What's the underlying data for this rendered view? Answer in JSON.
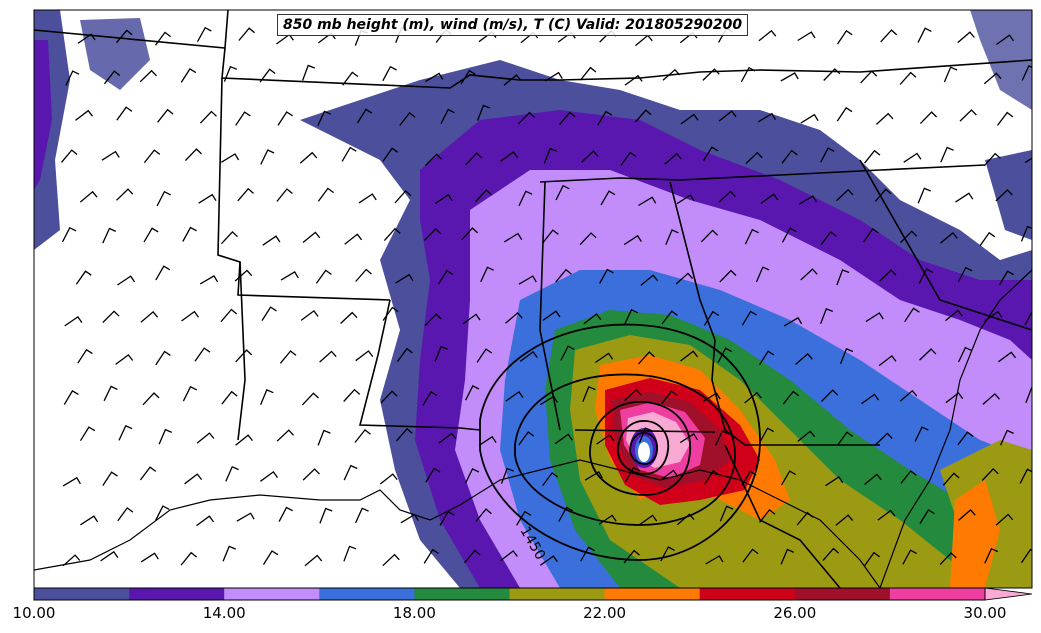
{
  "title": "850 mb height (m), wind (m/s), T (C) Valid: 201805290200",
  "contour_label": "1450",
  "colorbar": {
    "ticks": [
      "10.00",
      "14.00",
      "18.00",
      "22.00",
      "26.00",
      "30.00"
    ],
    "colors": [
      "#4b4f9c",
      "#5a17b0",
      "#c28cfb",
      "#3a6fdc",
      "#238a3e",
      "#9c9a12",
      "#ff7a00",
      "#d0001a",
      "#a0102a",
      "#ee3fa0",
      "#f8a9d4"
    ]
  },
  "map_colors": {
    "coast": "#000000",
    "background": "#ffffff"
  }
}
